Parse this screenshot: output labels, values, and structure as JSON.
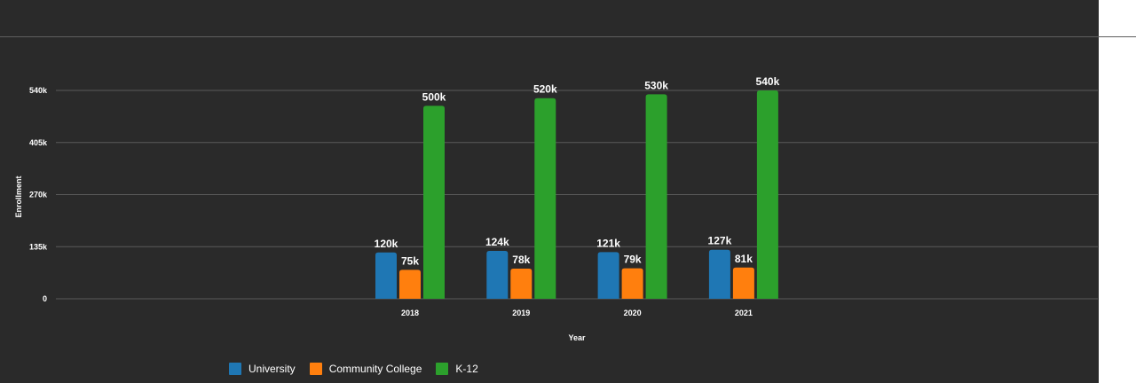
{
  "chart_data": {
    "type": "bar",
    "categories": [
      "2018",
      "2019",
      "2020",
      "2021"
    ],
    "series": [
      {
        "name": "University",
        "values": [
          120000,
          124000,
          121000,
          127000
        ],
        "labels": [
          "120k",
          "124k",
          "121k",
          "127k"
        ],
        "color": "#1f77b4"
      },
      {
        "name": "Community College",
        "values": [
          75000,
          78000,
          79000,
          81000
        ],
        "labels": [
          "75k",
          "78k",
          "79k",
          "81k"
        ],
        "color": "#ff7f0e"
      },
      {
        "name": "K-12",
        "values": [
          500000,
          520000,
          530000,
          540000
        ],
        "labels": [
          "500k",
          "520k",
          "530k",
          "540k"
        ],
        "color": "#2ca02c"
      }
    ],
    "xlabel": "Year",
    "ylabel": "Enrollment",
    "yticks": [
      0,
      135000,
      270000,
      405000,
      540000
    ],
    "ytick_labels": [
      "0",
      "135k",
      "270k",
      "405k",
      "540k"
    ],
    "ylim": [
      0,
      540000
    ],
    "grid": true,
    "legend_position": "bottom-left",
    "background": "#2a2a2a",
    "gridline_color": "#5a5a5a"
  }
}
